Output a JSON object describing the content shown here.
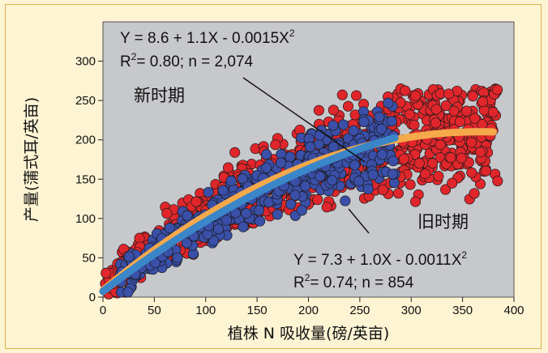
{
  "chart_data": {
    "type": "scatter",
    "title": "",
    "xlabel": "植株 N 吸收量(磅/英亩)",
    "ylabel": "产量(蒲式耳/英亩)",
    "xlim": [
      0,
      400
    ],
    "ylim": [
      0,
      350
    ],
    "x_ticks": [
      "0",
      "50",
      "100",
      "150",
      "200",
      "250",
      "300",
      "350",
      "400"
    ],
    "y_ticks": [
      "0",
      "50",
      "100",
      "150",
      "200",
      "250",
      "300"
    ],
    "grid": false,
    "series": [
      {
        "name": "新时期",
        "color": "#e0262b",
        "n": 2074,
        "fit": {
          "a": 8.6,
          "b": 1.1,
          "c": -0.0015,
          "x_range": [
            0,
            380
          ],
          "color": "#f5a94a"
        },
        "equation_line1": "Y = 8.6 + 1.1X - 0.0015X",
        "equation_line2_prefix": "R",
        "equation_line2_suffix": "= 0.80; n = 2,074"
      },
      {
        "name": "旧时期",
        "color": "#3a4fa8",
        "n": 854,
        "fit": {
          "a": 7.3,
          "b": 1.0,
          "c": -0.0011,
          "x_range": [
            0,
            285
          ],
          "color": "#3a86c8"
        },
        "equation_line1": "Y = 7.3 + 1.0X - 0.0011X",
        "equation_line2_prefix": "R",
        "equation_line2_suffix": "= 0.74; n = 854"
      }
    ],
    "superscript": "2"
  },
  "colors": {
    "background": "#fdf4d3",
    "plot_bg": "#c7c8cc",
    "frame": "#d9b24a"
  }
}
